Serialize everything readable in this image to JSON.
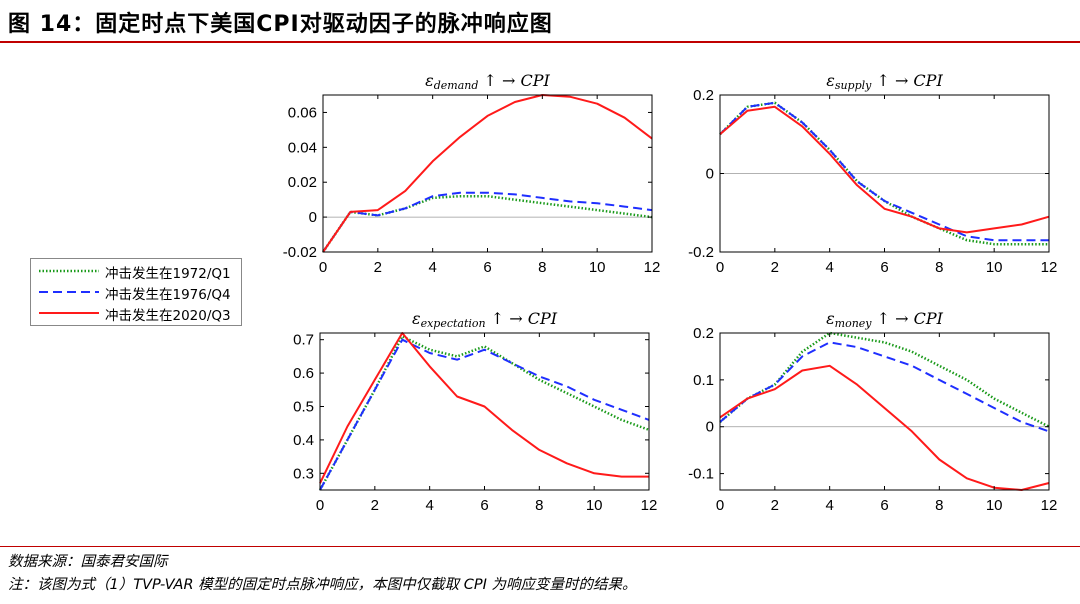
{
  "figure": {
    "title": "图 14：固定时点下美国CPI对驱动因子的脉冲响应图",
    "source": "数据来源：国泰君安国际",
    "note": "注：该图为式（1）TVP-VAR 模型的固定时点脉冲响应，本图中仅截取 CPI 为响应变量时的结果。"
  },
  "legend": [
    {
      "label": "冲击发生在1972/Q1",
      "color": "#1a9a1a",
      "style": "dotted"
    },
    {
      "label": "冲击发生在1976/Q4",
      "color": "#1f2fff",
      "style": "dashed"
    },
    {
      "label": "冲击发生在2020/Q3",
      "color": "#ff1a1a",
      "style": "solid"
    }
  ],
  "chart_data": [
    {
      "type": "line",
      "title_eps": "ε",
      "title_sub": "demand",
      "title_rest": " ↑ →  CPI",
      "xlim": [
        0,
        12
      ],
      "ylim": [
        -0.02,
        0.07
      ],
      "xticks": [
        0,
        2,
        4,
        6,
        8,
        10,
        12
      ],
      "yticks": [
        -0.02,
        0,
        0.02,
        0.04,
        0.06
      ],
      "ytick_labels": [
        "-0.02",
        "0",
        "0.02",
        "0.04",
        "0.06"
      ],
      "x": [
        0,
        1,
        2,
        3,
        4,
        5,
        6,
        7,
        8,
        9,
        10,
        11,
        12
      ],
      "series": [
        {
          "name": "冲击发生在1972/Q1",
          "values": [
            -0.02,
            0.003,
            0.001,
            0.005,
            0.011,
            0.012,
            0.012,
            0.01,
            0.008,
            0.006,
            0.004,
            0.002,
            0.0
          ]
        },
        {
          "name": "冲击发生在1976/Q4",
          "values": [
            -0.02,
            0.003,
            0.001,
            0.005,
            0.012,
            0.014,
            0.014,
            0.013,
            0.011,
            0.009,
            0.008,
            0.006,
            0.004
          ]
        },
        {
          "name": "冲击发生在2020/Q3",
          "values": [
            -0.02,
            0.003,
            0.004,
            0.015,
            0.032,
            0.046,
            0.058,
            0.066,
            0.07,
            0.069,
            0.065,
            0.057,
            0.045
          ]
        }
      ]
    },
    {
      "type": "line",
      "title_eps": "ε",
      "title_sub": "supply",
      "title_rest": " ↑ →  CPI",
      "xlim": [
        0,
        12
      ],
      "ylim": [
        -0.2,
        0.2
      ],
      "xticks": [
        0,
        2,
        4,
        6,
        8,
        10,
        12
      ],
      "yticks": [
        -0.2,
        0,
        0.2
      ],
      "ytick_labels": [
        "-0.2",
        "0",
        "0.2"
      ],
      "x": [
        0,
        1,
        2,
        3,
        4,
        5,
        6,
        7,
        8,
        9,
        10,
        11,
        12
      ],
      "series": [
        {
          "name": "冲击发生在1972/Q1",
          "values": [
            0.1,
            0.17,
            0.18,
            0.13,
            0.06,
            -0.02,
            -0.07,
            -0.11,
            -0.14,
            -0.17,
            -0.18,
            -0.18,
            -0.18
          ]
        },
        {
          "name": "冲击发生在1976/Q4",
          "values": [
            0.1,
            0.17,
            0.18,
            0.13,
            0.06,
            -0.02,
            -0.07,
            -0.1,
            -0.13,
            -0.16,
            -0.17,
            -0.17,
            -0.17
          ]
        },
        {
          "name": "冲击发生在2020/Q3",
          "values": [
            0.1,
            0.16,
            0.17,
            0.12,
            0.05,
            -0.03,
            -0.09,
            -0.11,
            -0.14,
            -0.15,
            -0.14,
            -0.13,
            -0.11
          ]
        }
      ]
    },
    {
      "type": "line",
      "title_eps": "ε",
      "title_sub": "expectation",
      "title_rest": " ↑ →  CPI",
      "xlim": [
        0,
        12
      ],
      "ylim": [
        0.25,
        0.72
      ],
      "xticks": [
        0,
        2,
        4,
        6,
        8,
        10,
        12
      ],
      "yticks": [
        0.3,
        0.4,
        0.5,
        0.6,
        0.7
      ],
      "ytick_labels": [
        "0.3",
        "0.4",
        "0.5",
        "0.6",
        "0.7"
      ],
      "x": [
        0,
        1,
        2,
        3,
        4,
        5,
        6,
        7,
        8,
        9,
        10,
        11,
        12
      ],
      "series": [
        {
          "name": "冲击发生在1972/Q1",
          "values": [
            0.25,
            0.4,
            0.55,
            0.71,
            0.67,
            0.65,
            0.68,
            0.63,
            0.58,
            0.54,
            0.5,
            0.46,
            0.43
          ]
        },
        {
          "name": "冲击发生在1976/Q4",
          "values": [
            0.25,
            0.4,
            0.55,
            0.7,
            0.66,
            0.64,
            0.67,
            0.63,
            0.59,
            0.56,
            0.52,
            0.49,
            0.46
          ]
        },
        {
          "name": "冲击发生在2020/Q3",
          "values": [
            0.27,
            0.44,
            0.58,
            0.72,
            0.62,
            0.53,
            0.5,
            0.43,
            0.37,
            0.33,
            0.3,
            0.29,
            0.29
          ]
        }
      ]
    },
    {
      "type": "line",
      "title_eps": "ε",
      "title_sub": "money",
      "title_rest": " ↑ →  CPI",
      "xlim": [
        0,
        12
      ],
      "ylim": [
        -0.135,
        0.2
      ],
      "xticks": [
        0,
        2,
        4,
        6,
        8,
        10,
        12
      ],
      "yticks": [
        -0.1,
        0,
        0.1,
        0.2
      ],
      "ytick_labels": [
        "-0.1",
        "0",
        "0.1",
        "0.2"
      ],
      "x": [
        0,
        1,
        2,
        3,
        4,
        5,
        6,
        7,
        8,
        9,
        10,
        11,
        12
      ],
      "series": [
        {
          "name": "冲击发生在1972/Q1",
          "values": [
            0.01,
            0.06,
            0.09,
            0.16,
            0.2,
            0.19,
            0.18,
            0.16,
            0.13,
            0.1,
            0.06,
            0.03,
            0.0
          ]
        },
        {
          "name": "冲击发生在1976/Q4",
          "values": [
            0.01,
            0.06,
            0.09,
            0.15,
            0.18,
            0.17,
            0.15,
            0.13,
            0.1,
            0.07,
            0.04,
            0.01,
            -0.01
          ]
        },
        {
          "name": "冲击发生在2020/Q3",
          "values": [
            0.02,
            0.06,
            0.08,
            0.12,
            0.13,
            0.09,
            0.04,
            -0.01,
            -0.07,
            -0.11,
            -0.13,
            -0.135,
            -0.12
          ]
        }
      ]
    }
  ]
}
